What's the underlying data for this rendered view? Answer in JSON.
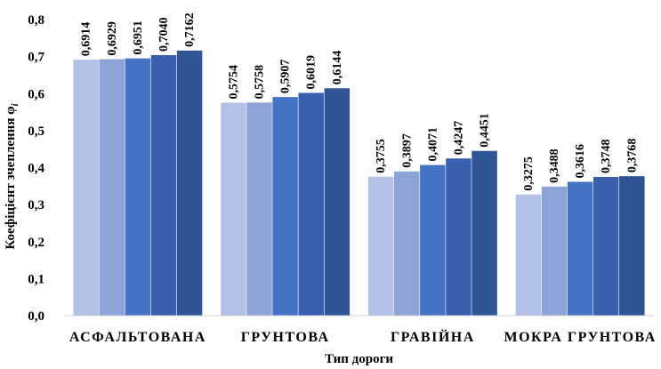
{
  "chart_data": {
    "type": "bar",
    "categories": [
      "АСФАЛЬТОВАНА",
      "ГРУНТОВА",
      "ГРАВІЙНА",
      "МОКРА ГРУНТОВА"
    ],
    "series": [
      {
        "values": [
          0.6914,
          0.5754,
          0.3755,
          0.3275
        ],
        "color": "#b4c1e6"
      },
      {
        "values": [
          0.6929,
          0.5758,
          0.3897,
          0.3488
        ],
        "color": "#8ea4d9"
      },
      {
        "values": [
          0.6951,
          0.5907,
          0.4071,
          0.3616
        ],
        "color": "#4472c4"
      },
      {
        "values": [
          0.704,
          0.6019,
          0.4247,
          0.3748
        ],
        "color": "#3860ad"
      },
      {
        "values": [
          0.7162,
          0.6144,
          0.4451,
          0.3768
        ],
        "color": "#2f5597"
      }
    ],
    "data_labels": [
      [
        "0,6914",
        "0,6929",
        "0,6951",
        "0,7040",
        "0,7162"
      ],
      [
        "0,5754",
        "0,5758",
        "0,5907",
        "0,6019",
        "0,6144"
      ],
      [
        "0,3755",
        "0,3897",
        "0,4071",
        "0,4247",
        "0,4451"
      ],
      [
        "0,3275",
        "0,3488",
        "0,3616",
        "0,3748",
        "0,3768"
      ]
    ],
    "ylim": [
      0,
      0.8
    ],
    "yticks": [
      0,
      0.1,
      0.2,
      0.3,
      0.4,
      0.5,
      0.6,
      0.7,
      0.8
    ],
    "ytick_labels": [
      "0,0",
      "0,1",
      "0,2",
      "0,3",
      "0,4",
      "0,5",
      "0,6",
      "0,7",
      "0,8"
    ],
    "xlabel": "Тип дороги",
    "ylabel": "Коефіцієнт зчеплення φi",
    "grid": false,
    "legend": "none"
  }
}
